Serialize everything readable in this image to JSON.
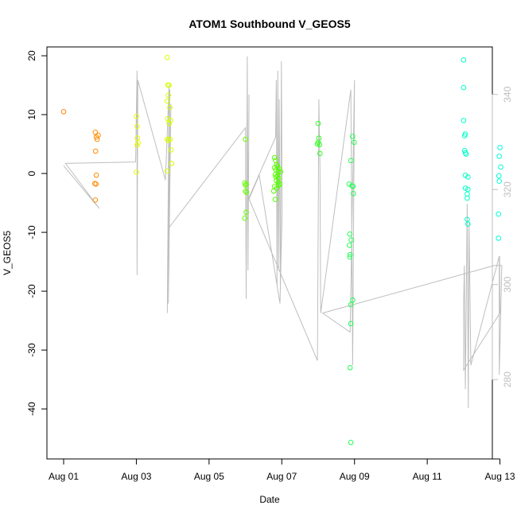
{
  "chart_data": {
    "type": "scatter",
    "title": "ATOM1 Southbound V_GEOS5",
    "xlabel": "Date",
    "ylabel": "V_GEOS5",
    "xlim": [
      1.0,
      13.25
    ],
    "ylim": [
      -48.5,
      21.5
    ],
    "y2lim": [
      263.3,
      350.0
    ],
    "x_ticks": [
      {
        "value": 1,
        "label": "Aug 01"
      },
      {
        "value": 3,
        "label": "Aug 03"
      },
      {
        "value": 5,
        "label": "Aug 05"
      },
      {
        "value": 7,
        "label": "Aug 07"
      },
      {
        "value": 9,
        "label": "Aug 09"
      },
      {
        "value": 11,
        "label": "Aug 11"
      },
      {
        "value": 13,
        "label": "Aug 13"
      }
    ],
    "y_ticks": [
      20,
      10,
      0,
      -10,
      -20,
      -30,
      -40
    ],
    "y2_ticks": [
      280,
      300,
      320,
      340
    ],
    "grid": false,
    "legend": "none",
    "points_color_note": "points colored by day, orange to cyan",
    "colors": {
      "axis": "#000000",
      "secondary_axis": "#bebebe",
      "secondary_line": "#bebebe"
    },
    "series": [
      {
        "color": "#ff8000",
        "points": [
          [
            1.0,
            10.5
          ]
        ]
      },
      {
        "color": "#ff8c00",
        "points": [
          [
            1.87,
            7.0
          ],
          [
            1.9,
            6.2
          ],
          [
            1.92,
            5.8
          ],
          [
            1.95,
            6.5
          ],
          [
            1.88,
            3.8
          ],
          [
            1.9,
            -0.3
          ],
          [
            1.86,
            -1.7
          ],
          [
            1.89,
            -1.8
          ],
          [
            1.87,
            -4.5
          ]
        ]
      },
      {
        "color": "#e8ff00",
        "points": [
          [
            3.0,
            9.7
          ],
          [
            3.02,
            8.0
          ],
          [
            3.03,
            6.0
          ],
          [
            3.05,
            5.2
          ],
          [
            3.02,
            4.8
          ],
          [
            3.0,
            0.2
          ]
        ]
      },
      {
        "color": "#d9ff00",
        "points": [
          [
            3.85,
            19.7
          ],
          [
            3.87,
            15.0
          ],
          [
            3.9,
            15.0
          ],
          [
            3.85,
            12.3
          ],
          [
            3.88,
            13.3
          ],
          [
            3.92,
            11.2
          ],
          [
            3.86,
            9.3
          ],
          [
            3.9,
            8.5
          ],
          [
            3.94,
            9.0
          ],
          [
            3.85,
            5.8
          ],
          [
            3.88,
            5.6
          ],
          [
            3.93,
            5.8
          ],
          [
            3.95,
            4.0
          ],
          [
            3.97,
            1.7
          ],
          [
            3.85,
            0.4
          ]
        ]
      },
      {
        "color": "#66ff00",
        "points": [
          [
            6.0,
            5.8
          ],
          [
            5.98,
            -1.6
          ],
          [
            6.0,
            -2.0
          ],
          [
            6.02,
            -1.8
          ],
          [
            6.0,
            -3.0
          ],
          [
            6.03,
            -3.2
          ],
          [
            5.98,
            -7.6
          ],
          [
            6.02,
            -6.6
          ]
        ]
      },
      {
        "color": "#55ff00",
        "points": [
          [
            6.8,
            2.7
          ],
          [
            6.83,
            2.2
          ],
          [
            6.86,
            1.5
          ],
          [
            6.8,
            1.0
          ],
          [
            6.84,
            0.6
          ],
          [
            6.9,
            0.3
          ],
          [
            6.82,
            -0.2
          ],
          [
            6.88,
            -0.4
          ],
          [
            6.92,
            -0.8
          ],
          [
            6.85,
            -1.2
          ],
          [
            6.9,
            -1.5
          ],
          [
            6.95,
            -1.8
          ],
          [
            6.8,
            -2.2
          ],
          [
            6.78,
            -3.0
          ],
          [
            6.86,
            -2.5
          ],
          [
            6.82,
            -4.4
          ],
          [
            6.93,
            0.8
          ],
          [
            6.97,
            0.3
          ],
          [
            6.88,
            1.2
          ],
          [
            6.84,
            -0.6
          ],
          [
            6.91,
            -2.0
          ]
        ]
      },
      {
        "color": "#33ff22",
        "points": [
          [
            8.0,
            8.5
          ],
          [
            8.02,
            6.0
          ],
          [
            8.0,
            5.3
          ],
          [
            8.04,
            4.9
          ],
          [
            7.98,
            5.0
          ],
          [
            8.05,
            3.4
          ]
        ]
      },
      {
        "color": "#22ff55",
        "points": [
          [
            8.95,
            6.3
          ],
          [
            8.99,
            5.3
          ],
          [
            8.9,
            2.2
          ],
          [
            8.85,
            -1.8
          ],
          [
            8.93,
            -2.1
          ],
          [
            8.96,
            -2.2
          ],
          [
            8.97,
            -3.4
          ],
          [
            8.87,
            -10.3
          ],
          [
            8.91,
            -11.3
          ],
          [
            8.86,
            -12.2
          ],
          [
            8.88,
            -13.8
          ],
          [
            8.87,
            -14.2
          ],
          [
            8.95,
            -21.5
          ],
          [
            8.9,
            -22.3
          ],
          [
            8.9,
            -25.5
          ],
          [
            8.88,
            -33.0
          ],
          [
            8.9,
            -45.7
          ]
        ]
      },
      {
        "color": "#00ffc8",
        "points": [
          [
            12.0,
            19.3
          ],
          [
            12.0,
            14.6
          ],
          [
            12.0,
            9.0
          ],
          [
            12.03,
            6.4
          ],
          [
            12.05,
            6.7
          ],
          [
            12.03,
            3.9
          ],
          [
            12.07,
            3.3
          ],
          [
            12.05,
            3.5
          ],
          [
            12.05,
            -0.3
          ],
          [
            12.12,
            -0.6
          ],
          [
            12.05,
            -2.5
          ],
          [
            12.1,
            -3.5
          ],
          [
            12.12,
            -2.7
          ],
          [
            12.1,
            -4.2
          ],
          [
            12.1,
            -7.8
          ],
          [
            12.12,
            -8.6
          ]
        ]
      },
      {
        "color": "#00ffd8",
        "points": [
          [
            13.0,
            4.4
          ],
          [
            12.98,
            2.9
          ],
          [
            13.02,
            1.1
          ],
          [
            12.97,
            -0.4
          ],
          [
            12.98,
            -1.3
          ],
          [
            12.96,
            -6.9
          ],
          [
            12.96,
            -11.0
          ]
        ]
      }
    ],
    "secondary_line": [
      [
        1.0,
        325
      ],
      [
        1.98,
        316
      ],
      [
        1.05,
        325.5
      ],
      [
        2.98,
        325.8
      ],
      [
        3.02,
        345
      ],
      [
        3.02,
        302
      ],
      [
        3.04,
        343
      ],
      [
        3.8,
        322
      ],
      [
        3.9,
        342
      ],
      [
        3.85,
        294
      ],
      [
        3.92,
        341
      ],
      [
        3.88,
        296
      ],
      [
        3.95,
        338
      ],
      [
        3.9,
        312
      ],
      [
        6.0,
        333
      ],
      [
        6.02,
        297
      ],
      [
        6.05,
        348
      ],
      [
        6.07,
        303
      ],
      [
        6.1,
        340
      ],
      [
        6.08,
        318
      ],
      [
        6.83,
        331
      ],
      [
        6.85,
        343
      ],
      [
        6.87,
        300
      ],
      [
        6.89,
        345
      ],
      [
        6.91,
        303
      ],
      [
        6.93,
        339
      ],
      [
        6.96,
        299
      ],
      [
        6.99,
        347
      ],
      [
        7.01,
        315
      ],
      [
        6.95,
        296
      ],
      [
        6.38,
        323
      ],
      [
        6.1,
        318
      ],
      [
        7.98,
        284
      ],
      [
        8.02,
        339
      ],
      [
        8.05,
        324
      ],
      [
        8.07,
        294
      ],
      [
        8.9,
        341
      ],
      [
        8.95,
        283
      ],
      [
        9.0,
        343
      ],
      [
        8.88,
        290
      ],
      [
        8.12,
        294
      ],
      [
        12.85,
        304
      ],
      [
        13.05,
        304
      ],
      [
        12.98,
        281
      ],
      [
        12.98,
        306
      ],
      [
        12.2,
        283
      ],
      [
        12.15,
        313
      ],
      [
        12.13,
        274
      ],
      [
        12.1,
        317
      ],
      [
        12.05,
        278
      ],
      [
        12.02,
        304
      ],
      [
        12.0,
        296
      ],
      [
        12.0,
        282
      ],
      [
        13.0,
        294
      ],
      [
        12.99,
        306
      ]
    ]
  }
}
